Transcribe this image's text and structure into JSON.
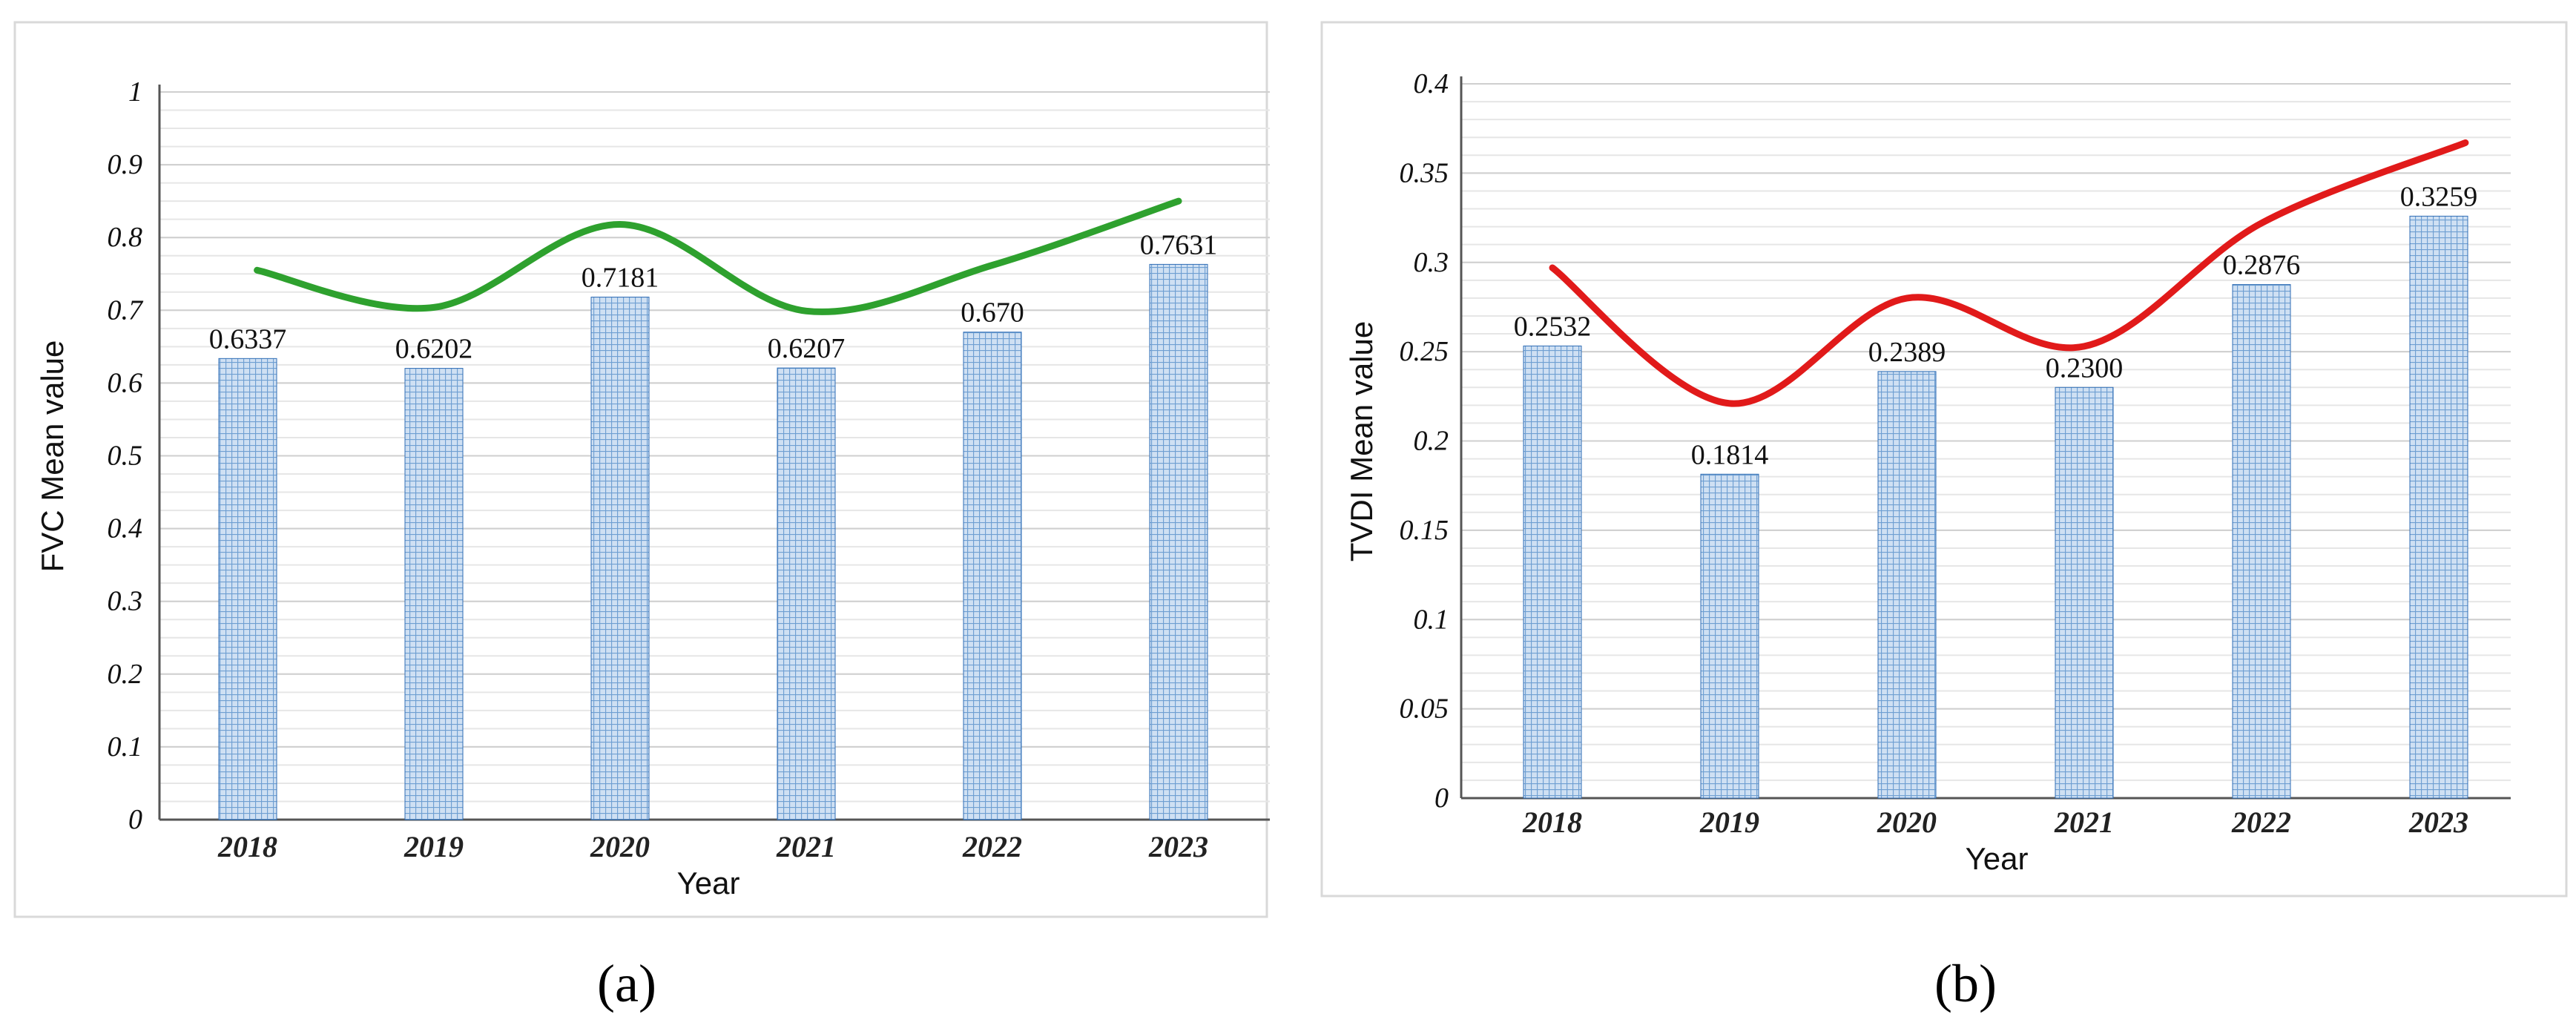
{
  "chart_data": [
    {
      "type": "bar",
      "panel_label": "(a)",
      "title": "",
      "xlabel": "Year",
      "ylabel": "FVC Mean value",
      "categories": [
        "2018",
        "2019",
        "2020",
        "2021",
        "2022",
        "2023"
      ],
      "values": [
        0.6337,
        0.6202,
        0.7181,
        0.6207,
        0.67,
        0.7631
      ],
      "value_labels": [
        "0.6337",
        "0.6202",
        "0.7181",
        "0.6207",
        "0.670",
        "0.7631"
      ],
      "ylim": [
        0,
        1
      ],
      "yticks": [
        0,
        0.1,
        0.2,
        0.3,
        0.4,
        0.5,
        0.6,
        0.7,
        0.8,
        0.9,
        1
      ],
      "ytick_labels": [
        "0",
        "0.1",
        "0.2",
        "0.3",
        "0.4",
        "0.5",
        "0.6",
        "0.7",
        "0.8",
        "0.9",
        "1"
      ],
      "minor_grid_step": 0.025,
      "grid": true,
      "trend_curve": {
        "color": "#2ea12e",
        "x": [
          0.05,
          1.0,
          2.0,
          3.0,
          4.0,
          5.0
        ],
        "y": [
          0.755,
          0.704,
          0.818,
          0.699,
          0.762,
          0.85
        ]
      },
      "bar_color": "#8fb8e0",
      "bar_border": "#2f6db5"
    },
    {
      "type": "bar",
      "panel_label": "(b)",
      "title": "",
      "xlabel": "Year",
      "ylabel": "TVDI Mean value",
      "categories": [
        "2018",
        "2019",
        "2020",
        "2021",
        "2022",
        "2023"
      ],
      "values": [
        0.2532,
        0.1814,
        0.2389,
        0.23,
        0.2876,
        0.3259
      ],
      "value_labels": [
        "0.2532",
        "0.1814",
        "0.2389",
        "0.2300",
        "0.2876",
        "0.3259"
      ],
      "ylim": [
        0,
        0.4
      ],
      "yticks": [
        0,
        0.05,
        0.1,
        0.15,
        0.2,
        0.25,
        0.3,
        0.35,
        0.4
      ],
      "ytick_labels": [
        "0",
        "0.05",
        "0.1",
        "0.15",
        "0.2",
        "0.25",
        "0.3",
        "0.35",
        "0.4"
      ],
      "minor_grid_step": 0.01,
      "grid": true,
      "trend_curve": {
        "color": "#e11a1a",
        "x": [
          0.0,
          1.0,
          2.0,
          3.0,
          4.0,
          5.15
        ],
        "y": [
          0.297,
          0.221,
          0.28,
          0.253,
          0.322,
          0.367
        ]
      },
      "bar_color": "#8fb8e0",
      "bar_border": "#2f6db5"
    }
  ]
}
